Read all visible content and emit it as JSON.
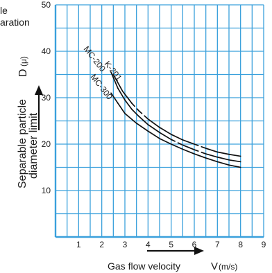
{
  "header": {
    "line1": "le",
    "line2": "aration"
  },
  "chart_data": {
    "type": "line",
    "xlabel": "Gas flow velocity",
    "xlabel_symbol": "V",
    "xlabel_unit": "(m/s)",
    "ylabel_line1": "Separable particle",
    "ylabel_line2": "diameter limit",
    "ylabel_symbol": "D",
    "ylabel_unit": "(μ)",
    "xlim": [
      0,
      9
    ],
    "ylim": [
      0,
      50
    ],
    "x_ticks": [
      1,
      2,
      3,
      4,
      5,
      6,
      7,
      8,
      9
    ],
    "y_ticks": [
      10,
      20,
      30,
      40,
      50
    ],
    "x_tick_labels": [
      "1",
      "2",
      "3",
      "4",
      "5",
      "6",
      "7",
      "8",
      "9"
    ],
    "y_tick_labels": [
      "10",
      "20",
      "30",
      "40",
      "50"
    ],
    "grid": true,
    "grid_color": "#3aa0dc",
    "line_color": "#111111",
    "series": [
      {
        "name": "K-201",
        "points": [
          [
            2.5,
            35.0
          ],
          [
            2.9,
            31.4
          ],
          [
            3.3,
            28.8
          ],
          [
            3.6,
            27.2
          ],
          [
            4.0,
            25.4
          ],
          [
            4.5,
            23.6
          ],
          [
            5.0,
            22.1
          ],
          [
            5.5,
            20.9
          ],
          [
            6.0,
            20.0
          ],
          [
            6.5,
            19.1
          ],
          [
            7.0,
            18.3
          ],
          [
            7.5,
            17.8
          ],
          [
            8.0,
            17.4
          ]
        ],
        "dash": [
          false,
          false,
          true,
          true,
          false,
          false,
          false,
          false,
          true,
          false,
          false,
          false
        ]
      },
      {
        "name": "MC-200",
        "points": [
          [
            2.4,
            35.5
          ],
          [
            2.7,
            32.0
          ],
          [
            3.0,
            29.5
          ],
          [
            3.3,
            27.5
          ],
          [
            3.6,
            26.0
          ],
          [
            4.0,
            24.2
          ],
          [
            4.5,
            22.5
          ],
          [
            5.0,
            21.0
          ],
          [
            5.5,
            19.8
          ],
          [
            6.0,
            18.8
          ],
          [
            6.5,
            17.9
          ],
          [
            7.0,
            17.2
          ],
          [
            7.5,
            16.6
          ],
          [
            8.0,
            16.2
          ]
        ],
        "dash": [
          false,
          false,
          false,
          false,
          false,
          false,
          false,
          true,
          false,
          true,
          false,
          false,
          false
        ]
      },
      {
        "name": "MC-300",
        "points": [
          [
            2.4,
            31.0
          ],
          [
            2.7,
            28.8
          ],
          [
            3.0,
            26.6
          ],
          [
            3.5,
            24.5
          ],
          [
            4.0,
            22.8
          ],
          [
            4.5,
            21.2
          ],
          [
            5.0,
            20.0
          ],
          [
            5.5,
            18.9
          ],
          [
            6.0,
            17.9
          ],
          [
            6.5,
            17.0
          ],
          [
            7.0,
            16.2
          ],
          [
            7.5,
            15.5
          ],
          [
            8.0,
            15.0
          ]
        ],
        "dash": [
          false,
          false,
          false,
          false,
          false,
          false,
          false,
          false,
          false,
          false,
          false,
          false
        ]
      }
    ],
    "series_labels": [
      {
        "text": "K-201",
        "anchor": [
          2.1,
          37.3
        ]
      },
      {
        "text": "MC-200",
        "anchor": [
          1.2,
          40.5
        ]
      },
      {
        "text": "MC-300",
        "anchor": [
          1.5,
          34.5
        ]
      }
    ]
  }
}
